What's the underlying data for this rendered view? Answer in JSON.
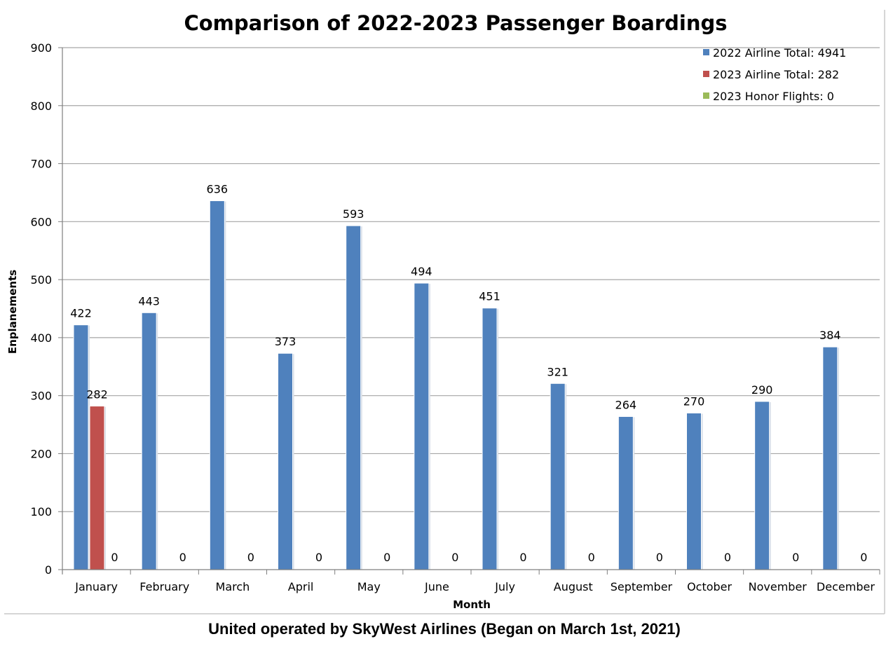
{
  "chart_data": {
    "type": "bar",
    "title": "Comparison of 2022-2023 Passenger Boardings",
    "xlabel": "Month",
    "ylabel": "Enplanements",
    "footer": "United operated by SkyWest Airlines (Began on March 1st, 2021)",
    "ylim": [
      0,
      900
    ],
    "yticks": [
      0,
      100,
      200,
      300,
      400,
      500,
      600,
      700,
      800,
      900
    ],
    "grid": true,
    "legend_position": "top-right",
    "categories": [
      "January",
      "February",
      "March",
      "April",
      "May",
      "June",
      "July",
      "August",
      "September",
      "October",
      "November",
      "December"
    ],
    "series": [
      {
        "name": "2022 Airline Total: 4941",
        "color": "#4f81bd",
        "values": [
          422,
          443,
          636,
          373,
          593,
          494,
          451,
          321,
          264,
          270,
          290,
          384
        ]
      },
      {
        "name": "2023 Airline Total: 282",
        "color": "#c0504d",
        "values": [
          282,
          null,
          null,
          null,
          null,
          null,
          null,
          null,
          null,
          null,
          null,
          null
        ]
      },
      {
        "name": "2023 Honor Flights: 0",
        "color": "#9bbb59",
        "values": [
          0,
          0,
          0,
          0,
          0,
          0,
          0,
          0,
          0,
          0,
          0,
          0
        ]
      }
    ]
  }
}
